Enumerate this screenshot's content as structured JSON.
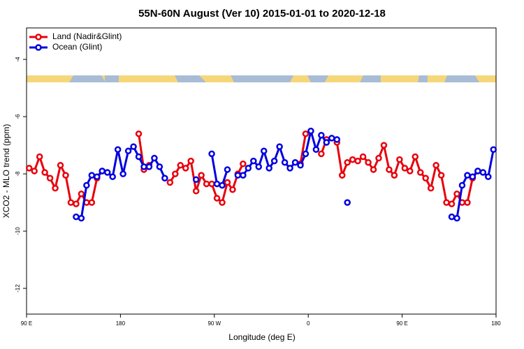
{
  "chart_data": {
    "type": "line",
    "title": "55N-60N August (Ver 10)   2015-01-01 to 2020-12-18",
    "x_label": "Longitude (deg E)",
    "y_label": "XCO2 - MLO trend (ppm)",
    "xlim": [
      90,
      540
    ],
    "ylim": [
      -12.9,
      -2.9
    ],
    "xticks": [
      {
        "value": 90,
        "label": "90 E"
      },
      180,
      {
        "value": 270,
        "label": "90 W"
      },
      {
        "value": 360,
        "label": "0"
      },
      {
        "value": 450,
        "label": "90 E"
      },
      {
        "value": 540,
        "label": "180"
      }
    ],
    "yticks": [
      -4,
      -6,
      -8,
      -10,
      -12
    ],
    "legend": "top-left",
    "x": [
      92.5,
      97.5,
      102.5,
      107.5,
      112.5,
      117.5,
      122.5,
      127.5,
      132.5,
      137.5,
      142.5,
      147.5,
      152.5,
      157.5,
      162.5,
      167.5,
      172.5,
      177.5,
      182.5,
      187.5,
      192.5,
      197.5,
      202.5,
      207.5,
      212.5,
      217.5,
      222.5,
      227.5,
      232.5,
      237.5,
      242.5,
      247.5,
      252.5,
      257.5,
      262.5,
      267.5,
      272.5,
      277.5,
      282.5,
      287.5,
      292.5,
      297.5,
      302.5,
      307.5,
      312.5,
      317.5,
      322.5,
      327.5,
      332.5,
      337.5,
      342.5,
      347.5,
      352.5,
      357.5,
      362.5,
      367.5,
      372.5,
      377.5,
      382.5,
      387.5,
      392.5,
      397.5,
      402.5,
      407.5,
      412.5,
      417.5,
      422.5,
      427.5,
      432.5,
      437.5,
      442.5,
      447.5,
      452.5,
      457.5,
      462.5,
      467.5,
      472.5,
      477.5,
      482.5,
      487.5,
      492.5,
      497.5,
      502.5,
      507.5,
      512.5,
      517.5,
      522.5,
      527.5,
      532.5,
      537.5
    ],
    "series": [
      {
        "name": "Land (Nadir&Glint)",
        "color": "#e8000b",
        "values": [
          -7.8,
          -7.9,
          -7.4,
          -7.95,
          -8.15,
          -8.5,
          -7.7,
          -8.05,
          -9.0,
          -9.05,
          -8.7,
          -9.0,
          -9.0,
          -8.15,
          -7.9,
          null,
          null,
          null,
          null,
          null,
          null,
          -6.6,
          -7.85,
          -7.7,
          null,
          null,
          null,
          -8.3,
          -8.0,
          -7.7,
          -7.8,
          -7.55,
          -8.6,
          -8.05,
          -8.35,
          -8.35,
          -8.85,
          -9.0,
          -8.3,
          -8.55,
          -8.0,
          -7.65,
          null,
          null,
          null,
          null,
          null,
          null,
          null,
          null,
          null,
          null,
          -7.65,
          -6.6,
          null,
          null,
          -7.3,
          -6.8,
          null,
          -6.9,
          -8.05,
          -7.6,
          -7.5,
          -7.55,
          -7.4,
          -7.6,
          -7.85,
          -7.45,
          -7.0,
          -7.85,
          -8.05,
          -7.5,
          -7.8,
          -7.9,
          -7.4,
          -7.95,
          -8.15,
          -8.5,
          -7.7,
          -8.05,
          -9.0,
          -9.05,
          -8.7,
          -9.0,
          -9.0,
          -8.15,
          -7.9,
          null,
          null,
          null
        ]
      },
      {
        "name": "Ocean (Glint)",
        "color": "#0000e0",
        "values": [
          null,
          null,
          null,
          null,
          null,
          null,
          null,
          null,
          null,
          -9.5,
          -9.55,
          -8.4,
          -8.05,
          -8.1,
          -7.9,
          -7.95,
          -8.1,
          -7.15,
          -8.0,
          -7.2,
          -7.05,
          -7.4,
          -7.75,
          -7.75,
          -7.45,
          -7.75,
          -8.15,
          null,
          null,
          null,
          null,
          null,
          -8.2,
          null,
          null,
          -7.3,
          -8.35,
          -8.4,
          -7.85,
          null,
          -8.05,
          -8.05,
          -7.8,
          -7.55,
          -7.75,
          -7.2,
          -7.8,
          -7.55,
          -7.05,
          -7.6,
          -7.8,
          -7.6,
          -7.7,
          -7.3,
          -6.5,
          -7.15,
          -6.65,
          -6.9,
          -6.75,
          -6.8,
          null,
          -9.0,
          null,
          null,
          null,
          null,
          null,
          null,
          null,
          null,
          null,
          null,
          null,
          null,
          null,
          null,
          null,
          null,
          null,
          null,
          null,
          -9.5,
          -9.55,
          -8.4,
          -8.05,
          -8.1,
          -7.9,
          -7.95,
          -8.1,
          -7.15
        ]
      }
    ]
  }
}
